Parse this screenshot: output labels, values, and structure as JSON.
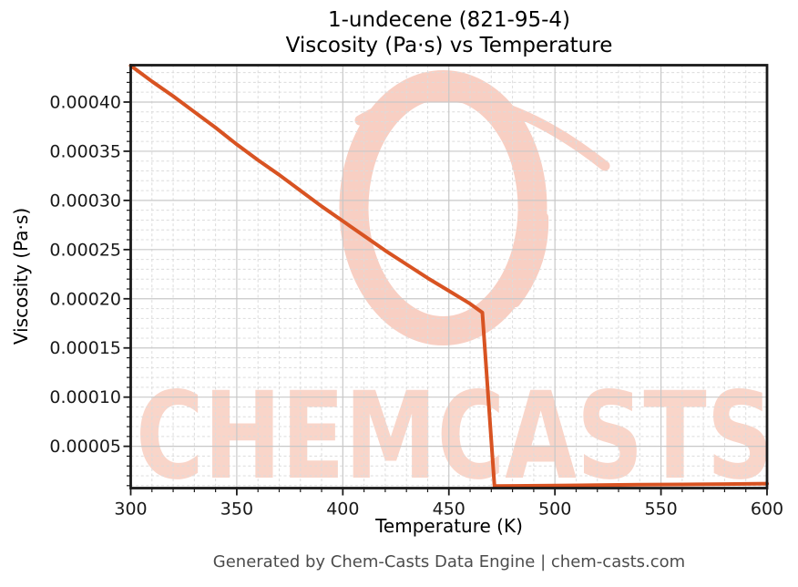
{
  "figure": {
    "footer": "Generated by Chem-Casts Data Engine | chem-casts.com",
    "watermark_text": "CHEMCASTS"
  },
  "colors": {
    "line": "#d85322",
    "watermark_ring": "#f8cfc3",
    "watermark_text": "#f9d5c9",
    "major_grid": "#c8c8c8",
    "minor_grid": "#dcdcdc",
    "axis": "#1a1a1a",
    "footer_text": "#4c4c4c"
  },
  "chart_data": {
    "type": "line",
    "title": "1-undecene (821-95-4)",
    "subtitle": "Viscosity (Pa·s) vs Temperature",
    "xlabel": "Temperature (K)",
    "ylabel": "Viscosity (Pa·s)",
    "xlim": [
      300,
      600
    ],
    "ylim": [
      7.5e-06,
      0.0004375
    ],
    "xticks": [
      300,
      350,
      400,
      450,
      500,
      550,
      600
    ],
    "yticks": [
      5e-05,
      0.0001,
      0.00015,
      0.0002,
      0.00025,
      0.0003,
      0.00035,
      0.0004
    ],
    "x_minor_step": 10,
    "y_minor_step": 1e-05,
    "y_tick_decimals": 5,
    "grid": true,
    "legend": false,
    "series": [
      {
        "name": "Viscosity (Pa·s)",
        "color": "#d85322",
        "points": [
          [
            300,
            0.000437
          ],
          [
            310,
            0.000421
          ],
          [
            320,
            0.000406
          ],
          [
            330,
            0.00039
          ],
          [
            340,
            0.000374
          ],
          [
            350,
            0.000357
          ],
          [
            360,
            0.000341
          ],
          [
            370,
            0.000326
          ],
          [
            380,
            0.00031
          ],
          [
            390,
            0.000294
          ],
          [
            400,
            0.000279
          ],
          [
            410,
            0.000264
          ],
          [
            420,
            0.000249
          ],
          [
            430,
            0.000235
          ],
          [
            440,
            0.000221
          ],
          [
            450,
            0.000208
          ],
          [
            460,
            0.000195
          ],
          [
            465.8,
            0.000186
          ],
          [
            471.5,
            9.5e-06
          ],
          [
            480,
            9.7e-06
          ],
          [
            500,
            1.01e-05
          ],
          [
            520,
            1.05e-05
          ],
          [
            540,
            1.09e-05
          ],
          [
            560,
            1.12e-05
          ],
          [
            580,
            1.16e-05
          ],
          [
            600,
            1.2e-05
          ]
        ]
      }
    ]
  }
}
